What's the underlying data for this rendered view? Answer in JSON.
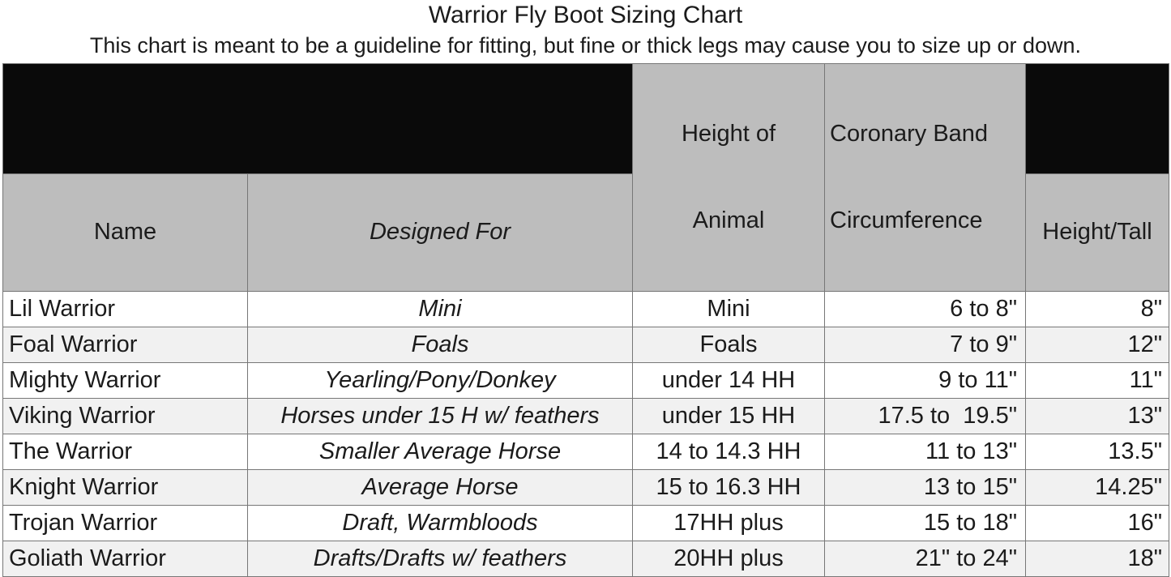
{
  "title": "Warrior Fly Boot Sizing Chart",
  "subtitle": "This chart is meant to be a guideline for fitting, but fine or thick legs may cause you to size up or down.",
  "colors": {
    "black_bar": "#0a0a0a",
    "header_gray": "#bdbdbd",
    "alt_row_gray": "#f1f1f1",
    "border": "#777777",
    "text": "#1b1b1b"
  },
  "chart_data": {
    "type": "table",
    "title": "Warrior Fly Boot Sizing Chart",
    "subtitle": "This chart is meant to be a guideline for fitting, but fine or thick legs may cause you to size up or down.",
    "columns": [
      "Name",
      "Designed For",
      "Height of Animal",
      "Coronary Band Circumference",
      "Height/Tall"
    ],
    "column_header_lines": [
      [
        "Name"
      ],
      [
        "Designed For"
      ],
      [
        "Height of",
        "Animal"
      ],
      [
        "Coronary Band",
        "Circumference"
      ],
      [
        "Height/Tall"
      ]
    ],
    "rows": [
      [
        "Lil Warrior",
        "Mini",
        "Mini",
        "6 to 8\"",
        "8\""
      ],
      [
        "Foal Warrior",
        "Foals",
        "Foals",
        "7 to 9\"",
        "12\""
      ],
      [
        "Mighty Warrior",
        "Yearling/Pony/Donkey",
        "under 14 HH",
        "9 to 11\"",
        "11\""
      ],
      [
        "Viking Warrior",
        "Horses under 15 H w/ feathers",
        "under 15 HH",
        "17.5 to  19.5\"",
        "13\""
      ],
      [
        "The Warrior",
        "Smaller Average Horse",
        "14 to 14.3 HH",
        "11 to 13\"",
        "13.5\""
      ],
      [
        "Knight Warrior",
        "Average Horse",
        "15 to 16.3 HH",
        "13 to 15\"",
        "14.25\""
      ],
      [
        "Trojan Warrior",
        "Draft, Warmbloods",
        "17HH plus",
        "15 to 18\"",
        "16\""
      ],
      [
        "Goliath Warrior",
        "Drafts/Drafts w/ feathers",
        "20HH plus",
        "21\" to 24\"",
        "18\""
      ]
    ]
  }
}
